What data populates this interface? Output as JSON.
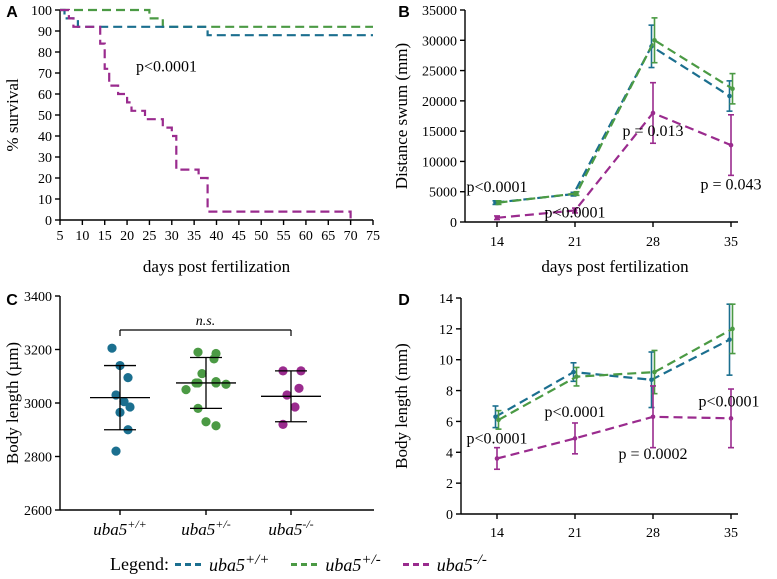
{
  "legend": {
    "title": "Legend:",
    "items": [
      {
        "base": "uba5",
        "sup": "+/+",
        "color": "#1b6f8f"
      },
      {
        "base": "uba5",
        "sup": "+/-",
        "color": "#4b9a44"
      },
      {
        "base": "uba5",
        "sup": "-/-",
        "color": "#9a2b8e"
      }
    ]
  },
  "chart_data": [
    {
      "panel": "A",
      "type": "line",
      "subtype": "kaplan-meier",
      "xlabel": "days post fertilization",
      "ylabel": "% survival",
      "xlim": [
        5,
        75
      ],
      "ylim": [
        0,
        100
      ],
      "xticks": [
        5,
        10,
        15,
        20,
        25,
        30,
        35,
        40,
        45,
        50,
        55,
        60,
        65,
        70,
        75
      ],
      "yticks": [
        0,
        10,
        20,
        30,
        40,
        50,
        60,
        70,
        80,
        90,
        100
      ],
      "annotations": [
        {
          "text": "p<0.0001",
          "x": 22,
          "y": 73
        }
      ],
      "series": [
        {
          "color": "#4b9a44",
          "steps": [
            [
              5,
              100
            ],
            [
              25,
              100
            ],
            [
              25,
              96
            ],
            [
              28,
              96
            ],
            [
              28,
              92
            ],
            [
              75,
              92
            ]
          ]
        },
        {
          "color": "#1b6f8f",
          "steps": [
            [
              5,
              100
            ],
            [
              6,
              100
            ],
            [
              6,
              96
            ],
            [
              9,
              96
            ],
            [
              9,
              92
            ],
            [
              38,
              92
            ],
            [
              38,
              88
            ],
            [
              75,
              88
            ]
          ]
        },
        {
          "color": "#9a2b8e",
          "steps": [
            [
              5,
              100
            ],
            [
              7,
              100
            ],
            [
              7,
              96
            ],
            [
              8,
              96
            ],
            [
              8,
              92
            ],
            [
              14,
              92
            ],
            [
              14,
              84
            ],
            [
              15,
              84
            ],
            [
              15,
              72
            ],
            [
              16,
              72
            ],
            [
              16,
              64
            ],
            [
              18,
              64
            ],
            [
              18,
              60
            ],
            [
              20,
              60
            ],
            [
              20,
              56
            ],
            [
              21,
              56
            ],
            [
              21,
              52
            ],
            [
              24,
              52
            ],
            [
              24,
              48
            ],
            [
              28,
              48
            ],
            [
              28,
              44
            ],
            [
              30,
              44
            ],
            [
              30,
              40
            ],
            [
              31,
              40
            ],
            [
              31,
              24
            ],
            [
              36,
              24
            ],
            [
              36,
              20
            ],
            [
              38,
              20
            ],
            [
              38,
              4
            ],
            [
              70,
              4
            ],
            [
              70,
              0
            ]
          ]
        }
      ]
    },
    {
      "panel": "B",
      "type": "line",
      "xlabel": "days post fertilization",
      "ylabel": "Distance swum (mm)",
      "categories": [
        "14",
        "21",
        "28",
        "35"
      ],
      "ylim": [
        0,
        35000
      ],
      "yticks": [
        0,
        5000,
        10000,
        15000,
        20000,
        25000,
        30000,
        35000
      ],
      "annotations": [
        {
          "text": "p<0.0001",
          "x": 14,
          "y": 5800
        },
        {
          "text": "p<0.0001",
          "x": 21,
          "y": 1600
        },
        {
          "text": "p = 0.013",
          "x": 28,
          "y": 15000
        },
        {
          "text": "p = 0.043",
          "x": 35,
          "y": 6200
        }
      ],
      "series": [
        {
          "color": "#1b6f8f",
          "values": [
            3200,
            4600,
            29000,
            20800
          ],
          "err": [
            300,
            300,
            3500,
            2500
          ]
        },
        {
          "color": "#4b9a44",
          "values": [
            3200,
            4700,
            30000,
            22000
          ],
          "err": [
            300,
            300,
            3700,
            2500
          ]
        },
        {
          "color": "#9a2b8e",
          "values": [
            700,
            1900,
            18000,
            12700
          ],
          "err": [
            300,
            400,
            5000,
            5000
          ]
        }
      ]
    },
    {
      "panel": "C",
      "type": "scatter",
      "ylabel": "Body length (µm)",
      "categories": [
        {
          "base": "uba5",
          "sup": "+/+"
        },
        {
          "base": "uba5",
          "sup": "+/-"
        },
        {
          "base": "uba5",
          "sup": "-/-"
        }
      ],
      "ylim": [
        2600,
        3400
      ],
      "yticks": [
        2600,
        2800,
        3000,
        3200,
        3400
      ],
      "significance": {
        "text": "n.s.",
        "from": 0,
        "to": 2
      },
      "groups": [
        {
          "color": "#1b6f8f",
          "mean": 3020,
          "sd": 120,
          "points": [
            3205,
            3140,
            3095,
            3030,
            3005,
            2985,
            2965,
            2900,
            2820
          ]
        },
        {
          "color": "#4b9a44",
          "mean": 3075,
          "sd": 95,
          "points": [
            3190,
            3185,
            3165,
            3110,
            3080,
            3075,
            3075,
            3075,
            3070,
            3050,
            2980,
            2930,
            2915
          ]
        },
        {
          "color": "#9a2b8e",
          "mean": 3025,
          "sd": 95,
          "points": [
            3120,
            3120,
            3055,
            3030,
            2985,
            2920
          ]
        }
      ]
    },
    {
      "panel": "D",
      "type": "line",
      "ylabel": "Body length (mm)",
      "categories": [
        "14",
        "21",
        "28",
        "35"
      ],
      "ylim": [
        0,
        14
      ],
      "yticks": [
        0,
        2,
        4,
        6,
        8,
        10,
        12,
        14
      ],
      "annotations": [
        {
          "text": "p<0.0001",
          "x": 14,
          "y": 4.9
        },
        {
          "text": "p<0.0001",
          "x": 21,
          "y": 6.6
        },
        {
          "text": "p = 0.0002",
          "x": 28,
          "y": 3.9
        },
        {
          "text": "p<0.0001",
          "x": 35,
          "y": 7.3
        }
      ],
      "series": [
        {
          "color": "#1b6f8f",
          "values": [
            6.3,
            9.2,
            8.7,
            11.3
          ],
          "err": [
            0.7,
            0.6,
            1.8,
            2.3
          ]
        },
        {
          "color": "#4b9a44",
          "values": [
            6.1,
            8.9,
            9.2,
            12.0
          ],
          "err": [
            0.6,
            0.6,
            1.4,
            1.6
          ]
        },
        {
          "color": "#9a2b8e",
          "values": [
            3.6,
            4.9,
            6.3,
            6.2
          ],
          "err": [
            0.7,
            1.0,
            2.0,
            1.9
          ]
        }
      ]
    }
  ]
}
